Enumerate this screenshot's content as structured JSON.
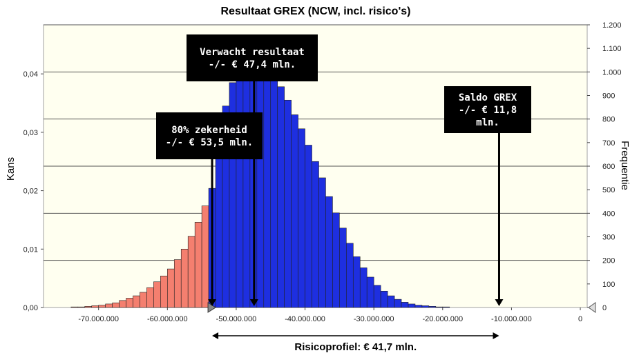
{
  "chart_data": {
    "type": "bar",
    "title": "Resultaat GREX (NCW, incl. risico's)",
    "xlabel": "",
    "ylabel_left": "Kans",
    "ylabel_right": "Frequentie",
    "xlim": [
      -78000000,
      1000000
    ],
    "ylim_left": [
      0,
      0.0484
    ],
    "ylim_right": [
      0,
      1200
    ],
    "x_ticks": [
      -70000000,
      -60000000,
      -50000000,
      -40000000,
      -30000000,
      -20000000,
      -10000000,
      0
    ],
    "x_tick_labels": [
      "-70.000.000",
      "-60.000.000",
      "-50.000.000",
      "-40.000.000",
      "-30.000.000",
      "-20.000.000",
      "-10.000.000",
      "0"
    ],
    "y_left_ticks": [
      0,
      0.01,
      0.02,
      0.03,
      0.04
    ],
    "y_left_tick_labels": [
      "0,00",
      "0,01",
      "0,02",
      "0,03",
      "0,04"
    ],
    "y_right_ticks": [
      0,
      100,
      200,
      300,
      400,
      500,
      600,
      700,
      800,
      900,
      1000,
      1100,
      1200
    ],
    "y_right_tick_labels": [
      "0",
      "100",
      "200",
      "300",
      "400",
      "500",
      "600",
      "700",
      "800",
      "900",
      "1.000",
      "1.100",
      "1.200"
    ],
    "grid": true,
    "bin_width": 1000000,
    "threshold_x": -53500000,
    "colors": {
      "below_threshold": "#f47f6f",
      "above_threshold": "#1e2fe0",
      "plot_background": "#fffff0",
      "callout_background": "#000000"
    },
    "histogram": {
      "bin_start": [
        -74000000,
        -73000000,
        -72000000,
        -71000000,
        -70000000,
        -69000000,
        -68000000,
        -67000000,
        -66000000,
        -65000000,
        -64000000,
        -63000000,
        -62000000,
        -61000000,
        -60000000,
        -59000000,
        -58000000,
        -57000000,
        -56000000,
        -55000000,
        -54000000,
        -53000000,
        -52000000,
        -51000000,
        -50000000,
        -49000000,
        -48000000,
        -47000000,
        -46000000,
        -45000000,
        -44000000,
        -43000000,
        -42000000,
        -41000000,
        -40000000,
        -39000000,
        -38000000,
        -37000000,
        -36000000,
        -35000000,
        -34000000,
        -33000000,
        -32000000,
        -31000000,
        -30000000,
        -29000000,
        -28000000,
        -27000000,
        -26000000,
        -25000000,
        -24000000,
        -23000000,
        -22000000,
        -21000000,
        -20000000
      ],
      "kans": [
        0.0001,
        0.0001,
        0.0002,
        0.0003,
        0.0004,
        0.0006,
        0.0008,
        0.0012,
        0.0016,
        0.002,
        0.0026,
        0.0034,
        0.0044,
        0.0054,
        0.0066,
        0.0082,
        0.01,
        0.0122,
        0.0146,
        0.0174,
        0.0204,
        0.027,
        0.0345,
        0.0385,
        0.0398,
        0.0406,
        0.041,
        0.0408,
        0.0404,
        0.0393,
        0.0378,
        0.0355,
        0.033,
        0.0306,
        0.0278,
        0.025,
        0.0222,
        0.019,
        0.0162,
        0.0136,
        0.011,
        0.0087,
        0.0068,
        0.0052,
        0.0038,
        0.0028,
        0.002,
        0.0014,
        0.0009,
        0.0006,
        0.0004,
        0.0003,
        0.0002,
        0.0001,
        0.0001
      ]
    },
    "annotations": [
      {
        "name": "expected",
        "lines": [
          "Verwacht resultaat",
          "-/- € 47,4 mln."
        ],
        "x": -47400000
      },
      {
        "name": "certainty",
        "lines": [
          "80% zekerheid",
          "-/- € 53,5 mln."
        ],
        "x": -53500000
      },
      {
        "name": "saldo",
        "lines": [
          "Saldo GREX",
          "-/- € 11,8",
          "mln."
        ],
        "x": -11800000
      }
    ],
    "risk_profile": {
      "label": "Risicoprofiel: € 41,7 mln.",
      "from": -53500000,
      "to": -11800000
    }
  }
}
